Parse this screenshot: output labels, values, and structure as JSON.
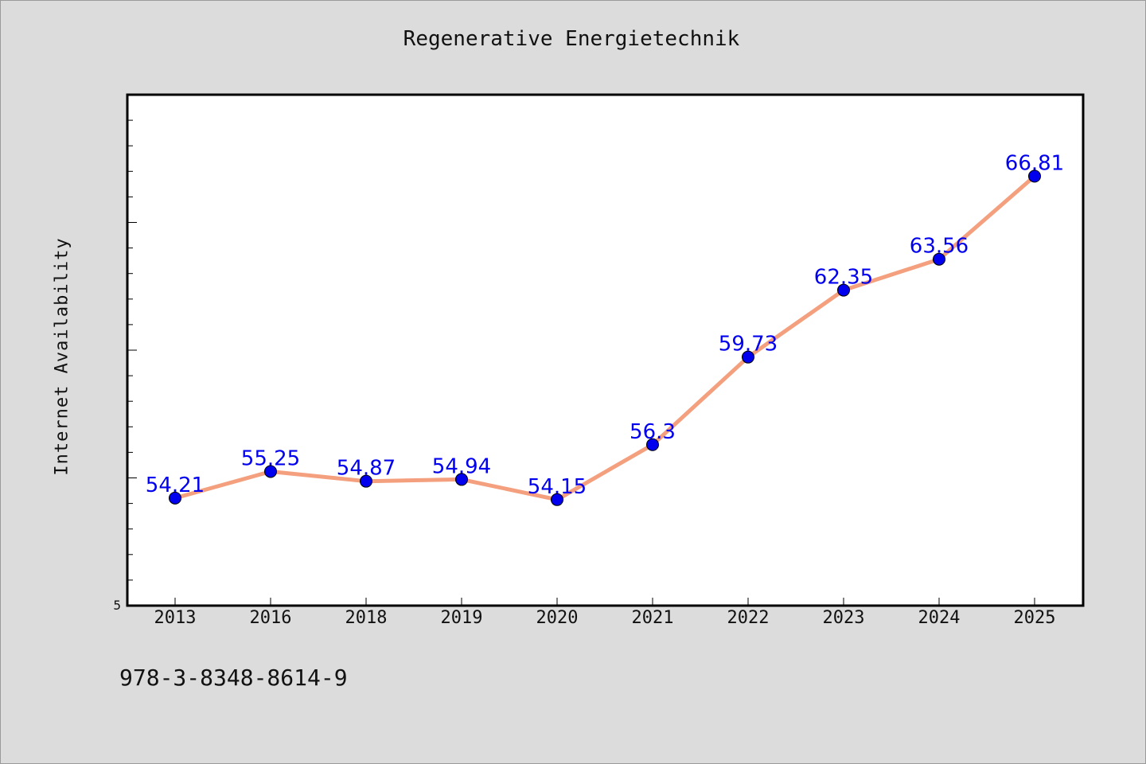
{
  "chart_data": {
    "type": "line",
    "title": "Regenerative Energietechnik",
    "xlabel": "",
    "ylabel": "Internet Availability",
    "categories": [
      "2013",
      "2016",
      "2018",
      "2019",
      "2020",
      "2021",
      "2022",
      "2023",
      "2024",
      "2025"
    ],
    "values": [
      54.21,
      55.25,
      54.87,
      54.94,
      54.15,
      56.3,
      59.73,
      62.35,
      63.56,
      66.81
    ],
    "data_labels": [
      "54.21",
      "55.25",
      "54.87",
      "54.94",
      "54.15",
      "56.3",
      "59.73",
      "62.35",
      "63.56",
      "66.81"
    ],
    "y_tick_label": "5",
    "ylim": [
      50,
      70
    ],
    "grid": false,
    "colors": {
      "line": "#f4a07e",
      "marker": "#0000ee",
      "label": "#0000ee",
      "background": "#dcdcdc",
      "plot_bg": "#ffffff"
    }
  },
  "footer": {
    "isbn": "978-3-8348-8614-9"
  }
}
